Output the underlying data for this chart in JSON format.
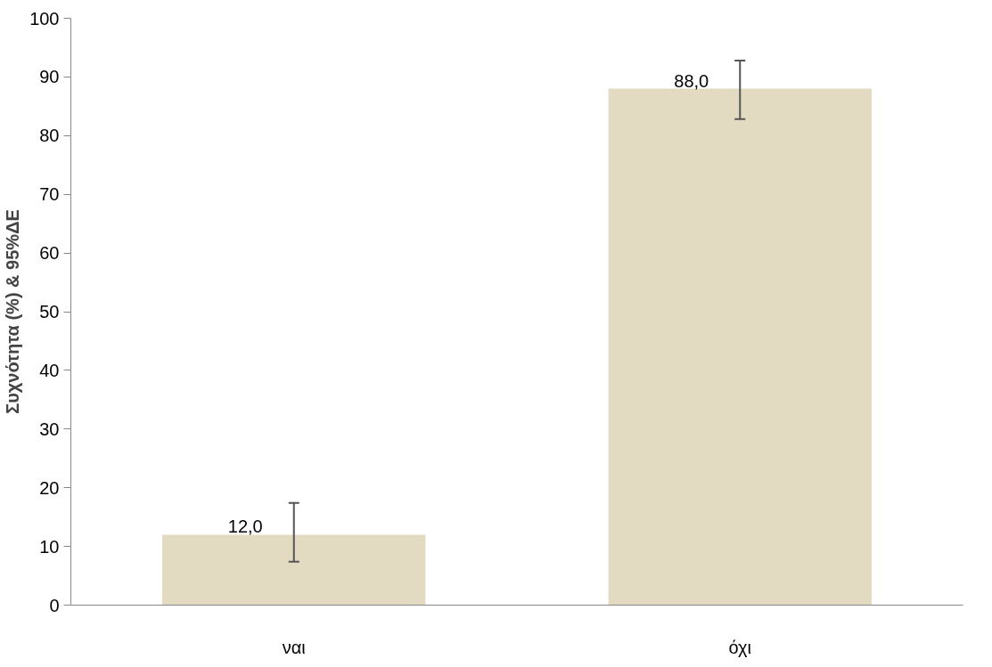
{
  "chart_data": {
    "type": "bar",
    "ylabel": "Συχνότητα (%) & 95%ΔΕ",
    "categories": [
      "ναι",
      "όχι"
    ],
    "values": [
      12.0,
      88.0
    ],
    "value_labels": [
      "12,0",
      "88,0"
    ],
    "errors": [
      [
        7.4,
        17.4
      ],
      [
        82.8,
        92.8
      ]
    ],
    "color": "#e3dac2",
    "ylim": [
      0,
      100
    ],
    "yticks": [
      0,
      10,
      20,
      30,
      40,
      50,
      60,
      70,
      80,
      90,
      100
    ],
    "grid": false
  }
}
